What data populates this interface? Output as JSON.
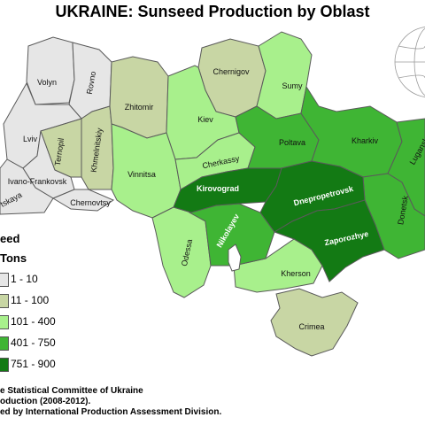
{
  "title": "UKRAINE: Sunseed Production by Oblast",
  "legend": {
    "title_line1": "eed",
    "title_line2": "Tons",
    "classes": [
      {
        "label": "1 - 10",
        "color": "#e6e6e6"
      },
      {
        "label": "11 - 100",
        "color": "#c8d6a4"
      },
      {
        "label": "101 - 400",
        "color": "#a8f08c"
      },
      {
        "label": "401 - 750",
        "color": "#3fb534"
      },
      {
        "label": "751 - 900",
        "color": "#137a14"
      }
    ]
  },
  "oblasts": [
    {
      "name": "Volyn",
      "class": 0
    },
    {
      "name": "Rovno",
      "class": 0
    },
    {
      "name": "Lviv",
      "class": 0
    },
    {
      "name": "Ivano-Frankovsk",
      "class": 0
    },
    {
      "name": "Zakarpatskaya",
      "display": "tskaya",
      "class": 0
    },
    {
      "name": "Chernovtsy",
      "class": 0
    },
    {
      "name": "Ternopil",
      "class": 1
    },
    {
      "name": "Khmelnitskiy",
      "class": 1
    },
    {
      "name": "Zhitomir",
      "class": 1
    },
    {
      "name": "Chernigov",
      "class": 1
    },
    {
      "name": "Crimea",
      "class": 1
    },
    {
      "name": "Sumy",
      "class": 2
    },
    {
      "name": "Kiev",
      "class": 2
    },
    {
      "name": "Vinnitsa",
      "class": 2
    },
    {
      "name": "Cherkassy",
      "class": 2
    },
    {
      "name": "Odessa",
      "class": 2
    },
    {
      "name": "Kherson",
      "class": 2
    },
    {
      "name": "Poltava",
      "class": 3
    },
    {
      "name": "Kharkiv",
      "class": 3
    },
    {
      "name": "Donetsk",
      "class": 3
    },
    {
      "name": "Nikolayev",
      "class": 3
    },
    {
      "name": "Lugansk",
      "class": 3
    },
    {
      "name": "Kirovograd",
      "class": 4
    },
    {
      "name": "Dnepropetrovsk",
      "class": 4
    },
    {
      "name": "Zaporozhye",
      "class": 4
    }
  ],
  "source": [
    "e Statistical Committee of Ukraine",
    "oduction (2008-2012).",
    "ed by International Production Assessment Division."
  ],
  "colors": {
    "border": "#5a5a5a",
    "water": "#ffffff"
  },
  "icons": {
    "globe": "globe-locator-icon"
  }
}
